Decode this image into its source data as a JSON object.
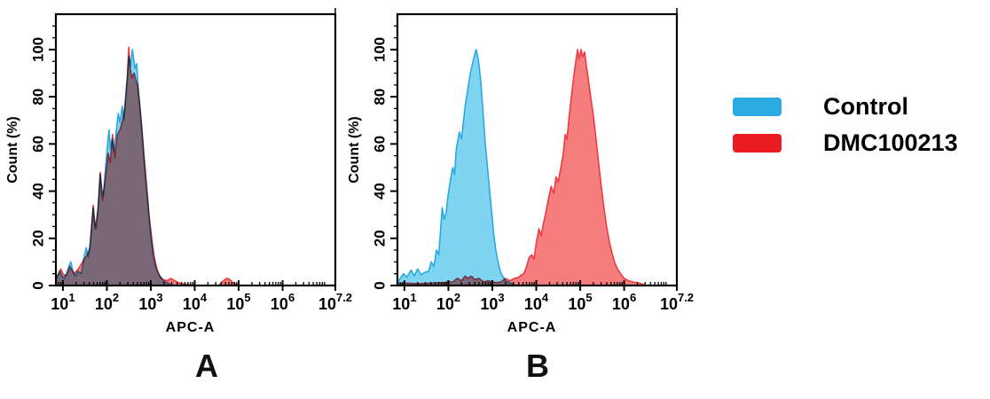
{
  "figure": {
    "background": "#ffffff"
  },
  "panels": [
    {
      "letter": "A"
    },
    {
      "letter": "B"
    }
  ],
  "legend": {
    "items": [
      {
        "label": "Control",
        "color": "#29ABE2"
      },
      {
        "label": "DMC100213",
        "color": "#EC1B23"
      }
    ]
  },
  "chart_data": [
    {
      "type": "area",
      "panel": "A",
      "title": "",
      "xlabel": "APC-A",
      "ylabel": "Count  (%)",
      "x_scale": "log10",
      "x_range_log": [
        0.84,
        7.2
      ],
      "ylim": [
        0,
        100
      ],
      "grid": false,
      "x_ticks": [
        {
          "log": 1,
          "base": "10",
          "exp": "1"
        },
        {
          "log": 2,
          "base": "10",
          "exp": "2"
        },
        {
          "log": 3,
          "base": "10",
          "exp": "3"
        },
        {
          "log": 4,
          "base": "10",
          "exp": "4"
        },
        {
          "log": 5,
          "base": "10",
          "exp": "5"
        },
        {
          "log": 6,
          "base": "10",
          "exp": "6"
        },
        {
          "log": 7.2,
          "base": "10",
          "exp": "7.2"
        }
      ],
      "y_ticks": [
        {
          "v": 0,
          "label": "0"
        },
        {
          "v": 20,
          "label": "20"
        },
        {
          "v": 40,
          "label": "40"
        },
        {
          "v": 60,
          "label": "60"
        },
        {
          "v": 80,
          "label": "80"
        },
        {
          "v": 100,
          "label": "100"
        }
      ],
      "series": [
        {
          "name": "DMC100213",
          "fill": "#F57D7D",
          "line": "#ED3B43",
          "blend": "normal",
          "points": [
            [
              0.84,
              3
            ],
            [
              0.9,
              5
            ],
            [
              0.95,
              7
            ],
            [
              1.0,
              5
            ],
            [
              1.08,
              4
            ],
            [
              1.16,
              8
            ],
            [
              1.25,
              5
            ],
            [
              1.35,
              7
            ],
            [
              1.45,
              10
            ],
            [
              1.55,
              13
            ],
            [
              1.62,
              16
            ],
            [
              1.69,
              34
            ],
            [
              1.73,
              24
            ],
            [
              1.8,
              32
            ],
            [
              1.85,
              48
            ],
            [
              1.9,
              36
            ],
            [
              1.97,
              46
            ],
            [
              2.03,
              56
            ],
            [
              2.08,
              52
            ],
            [
              2.13,
              64
            ],
            [
              2.18,
              54
            ],
            [
              2.24,
              64
            ],
            [
              2.3,
              66
            ],
            [
              2.36,
              70
            ],
            [
              2.4,
              74
            ],
            [
              2.44,
              80
            ],
            [
              2.47,
              90
            ],
            [
              2.5,
              101
            ],
            [
              2.53,
              92
            ],
            [
              2.57,
              88
            ],
            [
              2.62,
              90
            ],
            [
              2.66,
              87
            ],
            [
              2.7,
              85
            ],
            [
              2.74,
              78
            ],
            [
              2.79,
              68
            ],
            [
              2.84,
              56
            ],
            [
              2.9,
              44
            ],
            [
              2.96,
              30
            ],
            [
              3.02,
              20
            ],
            [
              3.08,
              12
            ],
            [
              3.14,
              7
            ],
            [
              3.2,
              4
            ],
            [
              3.28,
              2.5
            ],
            [
              3.38,
              2
            ],
            [
              3.45,
              3
            ],
            [
              3.55,
              2
            ],
            [
              3.65,
              1
            ],
            [
              3.8,
              0.5
            ],
            [
              4.0,
              0
            ],
            [
              4.55,
              0
            ],
            [
              4.65,
              2
            ],
            [
              4.73,
              3
            ],
            [
              4.8,
              2.5
            ],
            [
              4.88,
              1
            ],
            [
              5.0,
              0
            ]
          ]
        },
        {
          "name": "Control",
          "fill": "#7FD4F2",
          "line": "#2AA9DF",
          "blend": "multiply",
          "points": [
            [
              0.84,
              2
            ],
            [
              0.88,
              4
            ],
            [
              0.93,
              6
            ],
            [
              0.98,
              4
            ],
            [
              1.03,
              3
            ],
            [
              1.08,
              5
            ],
            [
              1.13,
              8
            ],
            [
              1.18,
              10
            ],
            [
              1.23,
              6
            ],
            [
              1.28,
              4
            ],
            [
              1.34,
              6
            ],
            [
              1.42,
              5
            ],
            [
              1.48,
              12
            ],
            [
              1.53,
              16
            ],
            [
              1.58,
              12
            ],
            [
              1.63,
              20
            ],
            [
              1.69,
              33
            ],
            [
              1.72,
              27
            ],
            [
              1.76,
              24
            ],
            [
              1.81,
              35
            ],
            [
              1.85,
              47
            ],
            [
              1.88,
              41
            ],
            [
              1.92,
              38
            ],
            [
              1.97,
              50
            ],
            [
              2.02,
              60
            ],
            [
              2.05,
              66
            ],
            [
              2.08,
              58
            ],
            [
              2.12,
              62
            ],
            [
              2.16,
              57
            ],
            [
              2.21,
              65
            ],
            [
              2.26,
              73
            ],
            [
              2.3,
              69
            ],
            [
              2.35,
              76
            ],
            [
              2.39,
              70
            ],
            [
              2.43,
              82
            ],
            [
              2.47,
              88
            ],
            [
              2.5,
              97
            ],
            [
              2.54,
              93
            ],
            [
              2.58,
              100
            ],
            [
              2.61,
              96
            ],
            [
              2.64,
              92
            ],
            [
              2.68,
              94
            ],
            [
              2.72,
              82
            ],
            [
              2.76,
              74
            ],
            [
              2.82,
              60
            ],
            [
              2.88,
              45
            ],
            [
              2.93,
              35
            ],
            [
              2.99,
              23
            ],
            [
              3.05,
              13
            ],
            [
              3.12,
              7
            ],
            [
              3.19,
              4.5
            ],
            [
              3.28,
              2
            ],
            [
              3.38,
              1
            ],
            [
              3.5,
              0
            ]
          ]
        }
      ]
    },
    {
      "type": "area",
      "panel": "B",
      "title": "",
      "xlabel": "APC-A",
      "ylabel": "Count  (%)",
      "x_scale": "log10",
      "x_range_log": [
        0.84,
        7.2
      ],
      "ylim": [
        0,
        100
      ],
      "grid": false,
      "x_ticks": [
        {
          "log": 1,
          "base": "10",
          "exp": "1"
        },
        {
          "log": 2,
          "base": "10",
          "exp": "2"
        },
        {
          "log": 3,
          "base": "10",
          "exp": "3"
        },
        {
          "log": 4,
          "base": "10",
          "exp": "4"
        },
        {
          "log": 5,
          "base": "10",
          "exp": "5"
        },
        {
          "log": 6,
          "base": "10",
          "exp": "6"
        },
        {
          "log": 7.2,
          "base": "10",
          "exp": "7.2"
        }
      ],
      "y_ticks": [
        {
          "v": 0,
          "label": "0"
        },
        {
          "v": 20,
          "label": "20"
        },
        {
          "v": 40,
          "label": "40"
        },
        {
          "v": 60,
          "label": "60"
        },
        {
          "v": 80,
          "label": "80"
        },
        {
          "v": 100,
          "label": "100"
        }
      ],
      "series": [
        {
          "name": "DMC100213",
          "fill": "#F57D7D",
          "line": "#ED3B43",
          "blend": "normal",
          "points": [
            [
              0.84,
              0.5
            ],
            [
              1.0,
              1
            ],
            [
              1.3,
              0.8
            ],
            [
              1.6,
              1
            ],
            [
              1.9,
              1.2
            ],
            [
              2.0,
              1.5
            ],
            [
              2.1,
              1.5
            ],
            [
              2.2,
              3
            ],
            [
              2.3,
              2
            ],
            [
              2.38,
              4
            ],
            [
              2.45,
              3
            ],
            [
              2.52,
              4
            ],
            [
              2.6,
              2.5
            ],
            [
              2.7,
              3
            ],
            [
              2.8,
              1.5
            ],
            [
              2.9,
              2
            ],
            [
              3.0,
              1.5
            ],
            [
              3.1,
              1.2
            ],
            [
              3.2,
              1.5
            ],
            [
              3.3,
              3
            ],
            [
              3.4,
              2
            ],
            [
              3.5,
              3
            ],
            [
              3.6,
              3.5
            ],
            [
              3.66,
              4.5
            ],
            [
              3.72,
              5
            ],
            [
              3.78,
              8
            ],
            [
              3.84,
              12
            ],
            [
              3.9,
              13
            ],
            [
              3.95,
              11
            ],
            [
              4.0,
              18
            ],
            [
              4.06,
              24
            ],
            [
              4.11,
              21
            ],
            [
              4.16,
              26
            ],
            [
              4.22,
              31
            ],
            [
              4.28,
              37
            ],
            [
              4.34,
              42
            ],
            [
              4.4,
              39
            ],
            [
              4.45,
              46
            ],
            [
              4.5,
              44
            ],
            [
              4.56,
              50
            ],
            [
              4.61,
              55
            ],
            [
              4.66,
              64
            ],
            [
              4.7,
              62
            ],
            [
              4.75,
              72
            ],
            [
              4.8,
              80
            ],
            [
              4.85,
              88
            ],
            [
              4.9,
              95
            ],
            [
              4.94,
              100
            ],
            [
              4.98,
              96
            ],
            [
              5.02,
              100
            ],
            [
              5.06,
              97
            ],
            [
              5.1,
              99
            ],
            [
              5.14,
              93
            ],
            [
              5.18,
              88
            ],
            [
              5.24,
              80
            ],
            [
              5.3,
              72
            ],
            [
              5.36,
              62
            ],
            [
              5.42,
              52
            ],
            [
              5.48,
              42
            ],
            [
              5.54,
              33
            ],
            [
              5.6,
              25
            ],
            [
              5.66,
              19
            ],
            [
              5.72,
              14
            ],
            [
              5.78,
              10
            ],
            [
              5.85,
              7
            ],
            [
              5.92,
              5
            ],
            [
              6.0,
              3
            ],
            [
              6.1,
              2
            ],
            [
              6.2,
              1.5
            ],
            [
              6.35,
              1
            ],
            [
              6.5,
              0
            ]
          ]
        },
        {
          "name": "Control",
          "fill": "#7FD4F2",
          "line": "#2AA9DF",
          "blend": "multiply",
          "points": [
            [
              0.84,
              1
            ],
            [
              0.9,
              3
            ],
            [
              0.98,
              5
            ],
            [
              1.05,
              3.5
            ],
            [
              1.15,
              6.5
            ],
            [
              1.22,
              4
            ],
            [
              1.3,
              7
            ],
            [
              1.38,
              4.5
            ],
            [
              1.45,
              5.5
            ],
            [
              1.55,
              6
            ],
            [
              1.61,
              10
            ],
            [
              1.67,
              8
            ],
            [
              1.73,
              15
            ],
            [
              1.78,
              13
            ],
            [
              1.86,
              33
            ],
            [
              1.9,
              28
            ],
            [
              1.95,
              31
            ],
            [
              1.99,
              38
            ],
            [
              2.05,
              45
            ],
            [
              2.1,
              50
            ],
            [
              2.14,
              47
            ],
            [
              2.18,
              58
            ],
            [
              2.25,
              65
            ],
            [
              2.3,
              62
            ],
            [
              2.38,
              76
            ],
            [
              2.45,
              84
            ],
            [
              2.5,
              90
            ],
            [
              2.56,
              95
            ],
            [
              2.63,
              100
            ],
            [
              2.68,
              96
            ],
            [
              2.73,
              88
            ],
            [
              2.78,
              76
            ],
            [
              2.83,
              62
            ],
            [
              2.88,
              52
            ],
            [
              2.93,
              42
            ],
            [
              2.98,
              32
            ],
            [
              3.03,
              22
            ],
            [
              3.08,
              15
            ],
            [
              3.14,
              9
            ],
            [
              3.2,
              5
            ],
            [
              3.3,
              2
            ],
            [
              3.42,
              1
            ],
            [
              3.52,
              0
            ]
          ]
        }
      ]
    }
  ]
}
